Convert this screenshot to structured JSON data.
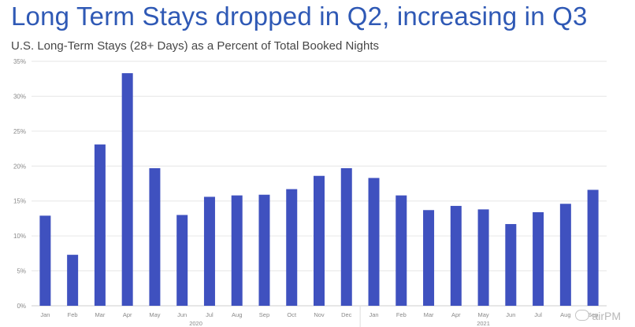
{
  "title": "Long Term Stays dropped in Q2, increasing in Q3",
  "subtitle": "U.S. Long-Term Stays (28+ Days) as a Percent of Total Booked Nights",
  "watermark": "airPM",
  "colors": {
    "bar": "#3f51bf",
    "title": "#2f59b5",
    "grid": "#e6e6e6",
    "axis_text": "#888888"
  },
  "chart_data": {
    "type": "bar",
    "categories": [
      "Jan",
      "Feb",
      "Mar",
      "Apr",
      "May",
      "Jun",
      "Jul",
      "Aug",
      "Sep",
      "Oct",
      "Nov",
      "Dec",
      "Jan",
      "Feb",
      "Mar",
      "Apr",
      "May",
      "Jun",
      "Jul",
      "Aug",
      "Sep"
    ],
    "groups": [
      {
        "label": "2020",
        "categories": 12
      },
      {
        "label": "2021",
        "categories": 9
      }
    ],
    "values": [
      12.9,
      7.3,
      23.1,
      33.3,
      19.7,
      13.0,
      15.6,
      15.8,
      15.9,
      16.7,
      18.6,
      19.7,
      18.3,
      15.8,
      13.7,
      14.3,
      13.8,
      11.7,
      13.4,
      14.6,
      16.6
    ],
    "ylim": [
      0,
      35
    ],
    "yticks": [
      0,
      5,
      10,
      15,
      20,
      25,
      30,
      35
    ],
    "ytick_labels": [
      "0%",
      "5%",
      "10%",
      "15%",
      "20%",
      "25%",
      "30%",
      "35%"
    ],
    "xlabel": "",
    "ylabel": "",
    "grid": true,
    "legend": "none"
  }
}
